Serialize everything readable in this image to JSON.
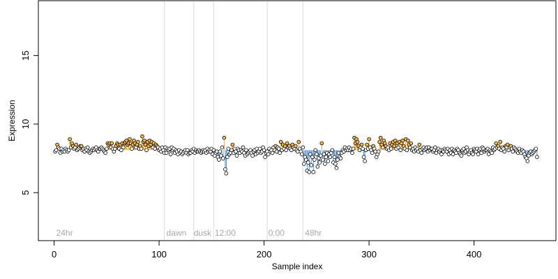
{
  "chart_data": {
    "type": "scatter",
    "title": "",
    "xlabel": "Sample index",
    "ylabel": "Expression",
    "xlim": [
      -15,
      478
    ],
    "ylim": [
      1.5,
      19
    ],
    "x_ticks": [
      0,
      100,
      200,
      300,
      400
    ],
    "y_ticks": [
      5,
      10,
      15
    ],
    "baseline": 8.1,
    "colors": {
      "axis": "#000000",
      "divider": "#dcdcdc",
      "up": "#f5a623",
      "down": "#4a90d9",
      "point_fill": "#ffffff",
      "point_up_fill": "#f5b84a",
      "point_stroke": "#000000",
      "region_label": "#a8a8a8"
    },
    "dividers": [
      105,
      133,
      152,
      203,
      237
    ],
    "region_labels": [
      {
        "x": 2,
        "text": "24hr"
      },
      {
        "x": 107,
        "text": "dawn"
      },
      {
        "x": 133,
        "text": "dusk"
      },
      {
        "x": 153,
        "text": "12:00"
      },
      {
        "x": 204,
        "text": "0:00"
      },
      {
        "x": 239,
        "text": "48hr"
      }
    ],
    "series": [
      {
        "x_start": 1,
        "values": [
          8.0,
          8.1,
          8.5,
          8.3,
          8.2,
          7.9,
          8.2,
          8.0,
          8.1,
          8.0,
          8.2,
          8.1,
          8.0,
          8.1,
          8.9,
          8.3,
          8.6,
          8.4,
          8.2,
          8.3,
          8.5,
          8.1,
          8.2,
          8.3,
          8.4,
          8.4,
          8.1,
          8.2,
          8.0,
          8.2,
          8.1,
          8.3,
          8.0,
          7.9,
          8.0,
          8.1,
          8.2,
          8.1,
          8.2,
          8.3,
          8.1,
          8.0,
          8.2,
          8.2,
          8.3,
          8.2,
          8.1,
          8.0,
          7.9,
          8.2,
          8.6,
          8.5,
          8.6,
          8.3,
          8.6,
          8.2,
          8.0,
          8.2,
          8.4,
          8.6,
          8.5,
          8.2,
          8.5,
          8.1,
          8.6,
          8.3,
          8.6,
          8.7,
          8.8,
          8.5,
          8.6,
          8.9,
          8.6,
          8.2,
          8.5,
          8.8,
          8.6,
          8.3,
          8.5,
          8.7,
          8.2,
          8.4,
          8.2,
          9.1,
          8.7,
          8.8,
          8.5,
          8.1,
          8.7,
          8.4,
          8.8,
          8.5,
          8.7,
          8.3,
          8.6,
          8.2,
          8.5,
          8.4,
          8.3,
          8.1,
          8.2,
          8.0,
          8.3,
          8.1,
          7.9,
          8.3,
          7.9,
          8.2,
          8.1,
          8.2,
          7.8,
          8.3,
          8.1,
          8.2,
          7.9,
          8.1,
          8.0,
          7.8,
          8.1,
          7.9,
          8.0,
          7.8,
          7.9,
          8.0,
          8.1,
          7.9,
          8.1,
          7.8,
          7.9,
          7.9,
          8.1,
          8.0,
          8.2,
          7.9,
          8.1,
          8.0,
          8.0,
          8.1,
          8.0,
          7.9,
          8.0,
          8.1,
          8.0,
          8.1,
          7.9,
          8.2,
          8.0,
          8.1,
          8.0,
          8.2,
          7.8,
          8.1,
          7.7,
          7.9,
          8.0,
          7.6,
          7.4,
          8.0,
          7.7,
          8.3,
          7.5,
          9.0,
          6.7,
          6.4,
          7.6,
          8.2,
          7.8,
          7.9,
          8.1,
          8.5,
          7.9,
          8.2,
          8.0,
          7.7,
          8.2,
          8.1,
          7.9,
          8.1,
          8.0,
          8.3,
          7.9,
          7.7,
          8.1,
          7.8,
          7.9,
          8.0,
          8.1,
          7.9,
          7.7,
          8.0,
          8.1,
          7.8,
          8.2,
          7.9,
          8.0,
          8.2,
          7.9,
          8.0,
          8.3,
          8.1,
          7.6,
          7.9,
          8.0,
          7.8,
          8.2,
          8.0,
          8.1,
          7.9,
          8.3,
          8.1,
          8.4,
          8.0,
          8.3,
          8.2,
          7.9,
          8.7,
          8.1,
          8.5,
          8.2,
          8.4,
          8.1,
          8.6,
          8.3,
          8.4,
          8.2,
          8.1,
          8.5,
          8.3,
          8.2,
          8.4,
          8.1,
          8.0,
          8.7,
          8.2,
          8.0,
          7.8,
          8.3,
          7.1,
          7.6,
          7.4,
          6.6,
          7.2,
          6.5,
          7.8,
          7.0,
          7.6,
          6.5,
          7.4,
          8.1,
          7.8,
          6.9,
          7.5,
          7.2,
          7.7,
          8.6,
          7.4,
          7.8,
          7.1,
          7.6,
          7.9,
          7.3,
          7.8,
          7.6,
          7.9,
          8.1,
          7.2,
          7.6,
          7.1,
          6.8,
          7.4,
          7.9,
          7.6,
          7.5,
          7.9,
          8.1,
          8.0,
          8.3,
          8.1,
          8.2,
          8.1,
          8.3,
          8.1,
          8.2,
          7.9,
          8.2,
          9.0,
          8.6,
          8.9,
          8.7,
          8.4,
          8.1,
          8.3,
          8.5,
          8.2,
          7.6,
          7.3,
          8.1,
          8.5,
          8.2,
          8.9,
          8.3,
          8.1,
          7.9,
          8.4,
          8.2,
          8.0,
          7.6,
          7.8,
          8.0,
          8.7,
          9.0,
          8.5,
          8.3,
          8.8,
          8.6,
          8.4,
          8.2,
          8.3,
          8.1,
          8.6,
          8.2,
          8.5,
          8.7,
          8.4,
          8.8,
          8.2,
          8.6,
          8.3,
          8.7,
          8.1,
          8.6,
          8.8,
          8.4,
          8.2,
          8.9,
          8.1,
          8.8,
          8.5,
          8.3,
          8.6,
          8.1,
          8.2,
          8.0,
          8.3,
          8.1,
          8.2,
          8.0,
          8.5,
          8.1,
          7.9,
          8.2,
          8.3,
          8.1,
          8.2,
          8.3,
          8.0,
          8.3,
          8.1,
          8.2,
          8.2,
          8.0,
          8.1,
          8.3,
          7.9,
          8.1,
          8.2,
          8.0,
          8.1,
          7.8,
          8.1,
          8.0,
          8.2,
          8.1,
          8.0,
          8.2,
          7.8,
          8.1,
          7.9,
          8.2,
          7.8,
          8.1,
          8.0,
          7.9,
          8.2,
          8.1,
          7.9,
          7.8,
          7.7,
          8.1,
          8.2,
          7.9,
          8.0,
          8.3,
          8.1,
          7.8,
          8.0,
          8.1,
          7.9,
          7.8,
          8.2,
          8.1,
          8.0,
          8.2,
          7.8,
          8.1,
          8.2,
          7.9,
          8.3,
          8.2,
          8.0,
          8.1,
          8.1,
          8.2,
          7.8,
          8.1,
          8.0,
          7.9,
          8.3,
          8.1,
          8.2,
          8.6,
          8.3,
          8.4,
          8.2,
          8.7,
          8.1,
          8.3,
          8.2,
          8.0,
          8.4,
          8.3,
          8.5,
          8.1,
          8.3,
          8.4,
          8.2,
          8.0,
          8.3,
          8.2,
          8.1,
          8.0,
          7.9,
          8.2,
          8.0,
          7.9,
          8.1,
          8.0,
          7.8,
          7.6,
          7.5,
          7.3,
          7.7,
          7.9,
          8.0,
          7.8,
          7.9,
          8.0,
          8.1,
          8.2,
          7.6
        ]
      }
    ]
  }
}
